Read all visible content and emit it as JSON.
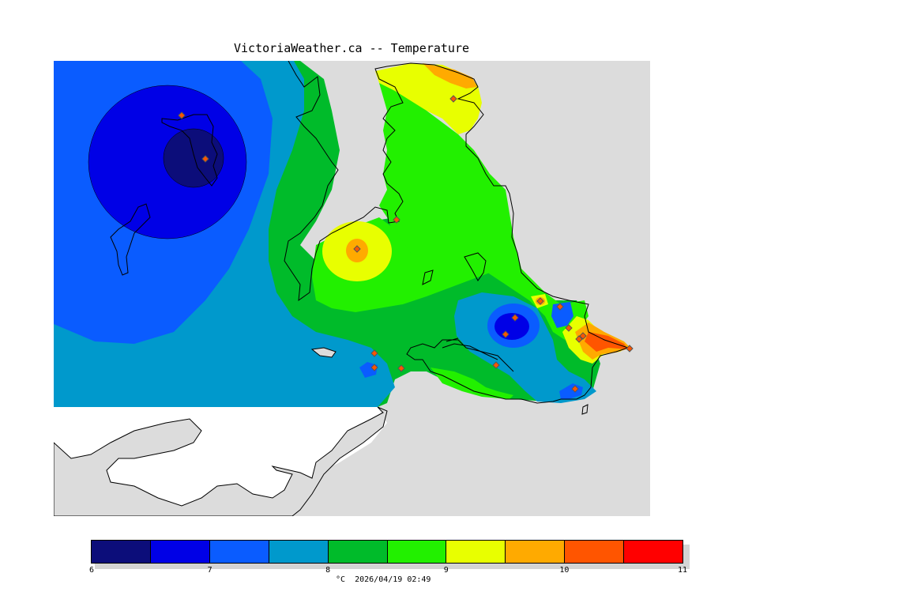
{
  "title": "VictoriaWeather.ca -- Temperature",
  "footer": {
    "unit": "°C",
    "timestamp": "2026/04/19 02:49"
  },
  "legend": {
    "colors": [
      "#0c0d7a",
      "#0000e6",
      "#0a5cff",
      "#0099cc",
      "#00bb2a",
      "#22f000",
      "#e8ff00",
      "#ffaa00",
      "#ff5500",
      "#ff0000"
    ],
    "ticks": [
      {
        "value": "6",
        "label": "6"
      },
      {
        "value": "7",
        "label": "7"
      },
      {
        "value": "8",
        "label": "8"
      },
      {
        "value": "9",
        "label": "9"
      },
      {
        "value": "10",
        "label": "10"
      },
      {
        "value": "11",
        "label": "11"
      }
    ],
    "range": [
      6,
      11
    ]
  },
  "map_colors": {
    "ocean": "#ffffff",
    "land_background": "#dcdcdc",
    "marker_fill": "#ff5500",
    "marker_stroke": "#555555"
  }
}
